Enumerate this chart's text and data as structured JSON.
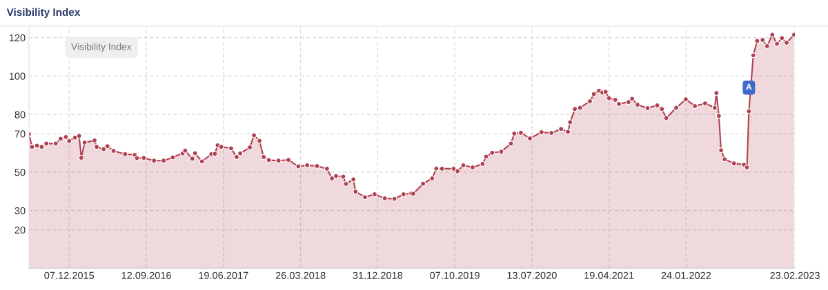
{
  "chart_data": {
    "type": "area",
    "title": "Visibility Index",
    "grid": true,
    "marker": "circle",
    "line_style": "solid",
    "ylim": [
      0,
      126
    ],
    "yticks": [
      20,
      30,
      50,
      70,
      80,
      100,
      120
    ],
    "xlim": [
      "2015-07-14",
      "2023-02-23"
    ],
    "xticks": [
      {
        "value": "2015-12-07",
        "label": "07.12.2015"
      },
      {
        "value": "2016-09-12",
        "label": "12.09.2016"
      },
      {
        "value": "2017-06-19",
        "label": "19.06.2017"
      },
      {
        "value": "2018-03-26",
        "label": "26.03.2018"
      },
      {
        "value": "2018-12-31",
        "label": "31.12.2018"
      },
      {
        "value": "2019-10-07",
        "label": "07.10.2019"
      },
      {
        "value": "2020-07-13",
        "label": "13.07.2020"
      },
      {
        "value": "2021-04-19",
        "label": "19.04.2021"
      },
      {
        "value": "2022-01-24",
        "label": "24.01.2022"
      },
      {
        "value": "2023-02-23",
        "label": "23.02.2023"
      }
    ],
    "annotations": [
      "Visibility Index",
      {
        "text": "A",
        "x": "2022-09-09",
        "y": 94
      }
    ],
    "series": [
      {
        "color": "#b0414f",
        "x": [
          "2015-07-14",
          "2015-07-25",
          "2015-08-12",
          "2015-08-29",
          "2015-09-15",
          "2015-10-19",
          "2015-11-06",
          "2015-11-25",
          "2015-12-07",
          "2015-12-28",
          "2016-01-12",
          "2016-01-20",
          "2016-02-01",
          "2016-03-08",
          "2016-03-16",
          "2016-04-10",
          "2016-04-24",
          "2016-05-16",
          "2016-06-27",
          "2016-08-01",
          "2016-08-09",
          "2016-09-03",
          "2016-10-10",
          "2016-11-14",
          "2016-12-17",
          "2017-01-22",
          "2017-01-31",
          "2017-02-26",
          "2017-03-08",
          "2017-04-02",
          "2017-05-06",
          "2017-05-19",
          "2017-05-29",
          "2017-06-11",
          "2017-07-17",
          "2017-08-06",
          "2017-08-19",
          "2017-09-23",
          "2017-10-08",
          "2017-10-28",
          "2017-11-12",
          "2017-12-01",
          "2018-01-05",
          "2018-02-10",
          "2018-03-18",
          "2018-04-19",
          "2018-05-25",
          "2018-06-30",
          "2018-07-18",
          "2018-08-02",
          "2018-08-28",
          "2018-09-07",
          "2018-10-04",
          "2018-10-12",
          "2018-11-15",
          "2018-12-20",
          "2019-01-26",
          "2019-03-02",
          "2019-04-04",
          "2019-05-02",
          "2019-05-09",
          "2019-06-14",
          "2019-07-17",
          "2019-08-01",
          "2019-08-22",
          "2019-10-03",
          "2019-10-17",
          "2019-11-07",
          "2019-12-11",
          "2020-01-16",
          "2020-01-29",
          "2020-02-20",
          "2020-03-24",
          "2020-04-28",
          "2020-05-10",
          "2020-06-03",
          "2020-07-06",
          "2020-08-17",
          "2020-09-22",
          "2020-10-27",
          "2020-11-21",
          "2020-11-29",
          "2020-12-16",
          "2021-01-04",
          "2021-02-09",
          "2021-02-23",
          "2021-03-14",
          "2021-03-26",
          "2021-04-07",
          "2021-04-19",
          "2021-05-12",
          "2021-05-25",
          "2021-06-29",
          "2021-07-12",
          "2021-08-01",
          "2021-09-06",
          "2021-10-11",
          "2021-10-28",
          "2021-11-13",
          "2021-12-19",
          "2022-01-23",
          "2022-02-25",
          "2022-04-03",
          "2022-05-08",
          "2022-05-14",
          "2022-05-23",
          "2022-05-31",
          "2022-06-13",
          "2022-07-17",
          "2022-08-22",
          "2022-09-02",
          "2022-09-09",
          "2022-09-25",
          "2022-10-09",
          "2022-10-29",
          "2022-11-14",
          "2022-12-03",
          "2022-12-20",
          "2023-01-07",
          "2023-01-24",
          "2023-02-20"
        ],
        "values": [
          69.8,
          63.2,
          63.8,
          63.2,
          64.9,
          64.9,
          67.4,
          68.3,
          66.2,
          68,
          68.9,
          57.5,
          65.4,
          66.5,
          63.2,
          62,
          63.5,
          61.1,
          59.4,
          59,
          57.3,
          57.4,
          56,
          56,
          57.7,
          59.8,
          61.2,
          57,
          59.9,
          55.6,
          59.4,
          59.6,
          64,
          63.2,
          62.4,
          57.9,
          59.8,
          62.9,
          69.2,
          66.3,
          57.9,
          56.3,
          56,
          56.4,
          53,
          53.6,
          53.2,
          51.8,
          46.8,
          48,
          47.7,
          43.9,
          46.2,
          39.9,
          37,
          38.5,
          36.4,
          36.1,
          38.5,
          39,
          38.8,
          44,
          46.8,
          51.9,
          51.8,
          51.8,
          50.5,
          53.6,
          52.5,
          54.3,
          58.1,
          60.1,
          60.7,
          64.9,
          70.1,
          70.5,
          67.6,
          70.8,
          70.4,
          72.5,
          71,
          76,
          82.9,
          83.5,
          86.9,
          90.6,
          92.4,
          91.4,
          91.8,
          88.5,
          87.6,
          85.5,
          86.5,
          88.2,
          85.1,
          83.3,
          84.8,
          82.9,
          78.2,
          83.5,
          87.9,
          84.4,
          85.8,
          83.5,
          91.2,
          79.3,
          61.4,
          56.7,
          54.6,
          53.9,
          52.5,
          81.7,
          110.8,
          118.3,
          118.8,
          115.6,
          121.5,
          116.8,
          119.8,
          117.4,
          121.5
        ]
      }
    ]
  }
}
